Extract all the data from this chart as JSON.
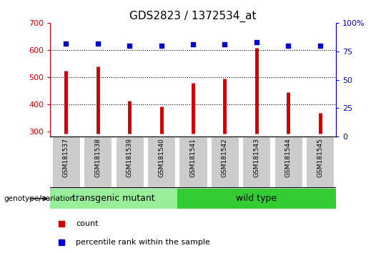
{
  "title": "GDS2823 / 1372534_at",
  "categories": [
    "GSM181537",
    "GSM181538",
    "GSM181539",
    "GSM181540",
    "GSM181541",
    "GSM181542",
    "GSM181543",
    "GSM181544",
    "GSM181545"
  ],
  "counts": [
    523,
    540,
    413,
    390,
    478,
    493,
    608,
    445,
    367
  ],
  "percentile_ranks": [
    82,
    82,
    80,
    80,
    81,
    81,
    83,
    80,
    80
  ],
  "ylim_left": [
    280,
    700
  ],
  "ylim_right": [
    0,
    100
  ],
  "yticks_left": [
    300,
    400,
    500,
    600,
    700
  ],
  "yticks_right": [
    0,
    25,
    50,
    75,
    100
  ],
  "bar_color": "#cc0000",
  "dot_color": "#0000cc",
  "group1_label": "transgenic mutant",
  "group2_label": "wild type",
  "group1_count": 4,
  "group2_count": 5,
  "group1_color": "#99ee99",
  "group2_color": "#33cc33",
  "xlabel_area_color": "#cccccc",
  "legend_count_color": "#cc0000",
  "legend_pct_color": "#0000cc",
  "genotype_label": "genotype/variation",
  "right_axis_color": "#0000cc",
  "left_axis_color": "#cc0000",
  "bar_bottom": 290,
  "hgrid_values": [
    400,
    500,
    600
  ],
  "title_fontsize": 11
}
